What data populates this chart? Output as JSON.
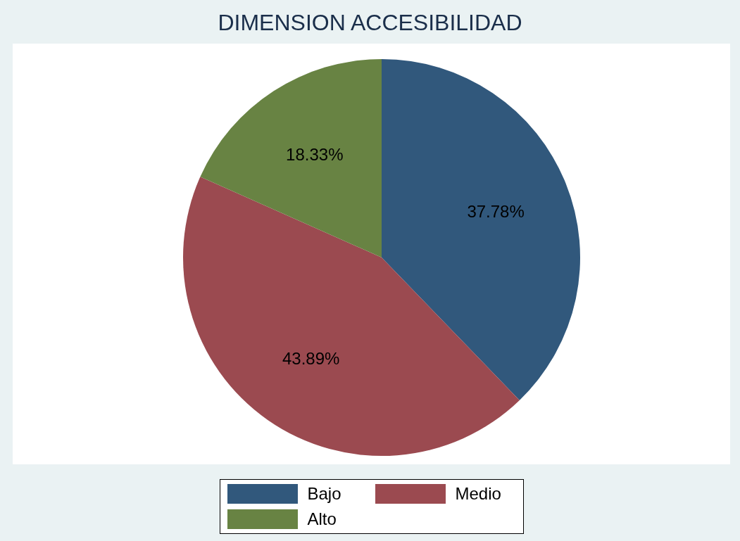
{
  "chart_data": {
    "type": "pie",
    "title": "DIMENSION ACCESIBILIDAD",
    "categories": [
      "Bajo",
      "Medio",
      "Alto"
    ],
    "values": [
      37.78,
      43.89,
      18.33
    ],
    "value_labels": [
      "37.78%",
      "43.89%",
      "18.33%"
    ],
    "colors": [
      "#31587c",
      "#9b4a50",
      "#688343"
    ],
    "legend": "bottom"
  }
}
